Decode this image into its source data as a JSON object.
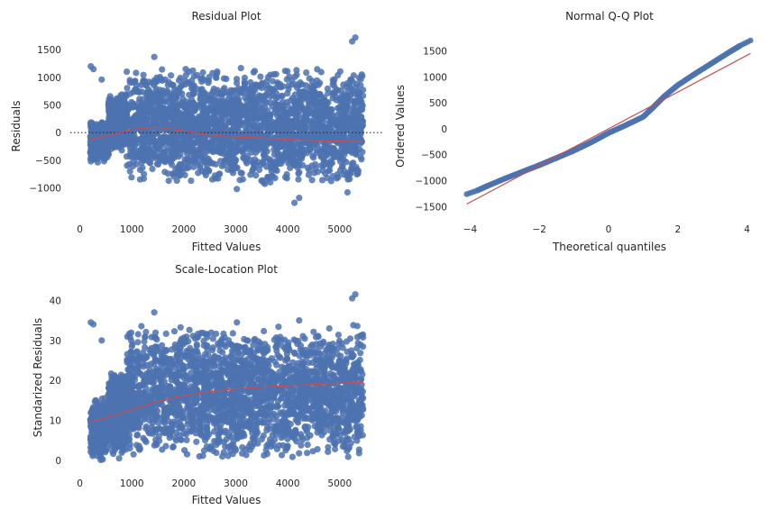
{
  "figure": {
    "background": "#ffffff"
  },
  "colors": {
    "points": "#4c72b0",
    "lowess": "#c44e52",
    "zero_line": "#262626"
  },
  "chart_data": [
    {
      "id": "residual",
      "type": "scatter",
      "title": "Residual Plot",
      "xlabel": "Fitted Values",
      "ylabel": "Residuals",
      "xlim": [
        -150,
        5750
      ],
      "ylim": [
        -1480,
        1780
      ],
      "xticks": [
        0,
        1000,
        2000,
        3000,
        4000,
        5000
      ],
      "yticks": [
        -1000,
        -500,
        0,
        500,
        1000,
        1500
      ],
      "grid": false,
      "reference_line": {
        "y": 0,
        "style": "dotted"
      },
      "point_cloud": {
        "x_range": [
          200,
          5450
        ],
        "bands": [
          {
            "x": [
              200,
              550
            ],
            "y": [
              -550,
              250
            ]
          },
          {
            "x": [
              550,
              900
            ],
            "y": [
              -350,
              750
            ]
          },
          {
            "x": [
              900,
              5450
            ],
            "y": [
              -950,
              1200
            ]
          }
        ],
        "extremes": [
          [
            210,
            1200
          ],
          [
            260,
            1150
          ],
          [
            420,
            960
          ],
          [
            1430,
            1370
          ],
          [
            4220,
            -1180
          ],
          [
            4130,
            -1270
          ],
          [
            5300,
            1720
          ],
          [
            5240,
            1650
          ],
          [
            3020,
            -1020
          ],
          [
            5150,
            -1080
          ]
        ]
      },
      "lowess": {
        "x": [
          200,
          600,
          1000,
          1500,
          2000,
          2500,
          3000,
          3500,
          4000,
          4500,
          5000,
          5450
        ],
        "y": [
          -130,
          -40,
          60,
          100,
          30,
          -40,
          -80,
          -100,
          -120,
          -140,
          -155,
          -165
        ]
      }
    },
    {
      "id": "qq",
      "type": "scatter",
      "title": "Normal Q-Q Plot",
      "xlabel": "Theoretical quantiles",
      "ylabel": "Ordered Values",
      "xlim": [
        -4.35,
        4.35
      ],
      "ylim": [
        -1650,
        1820
      ],
      "xticks": [
        -4,
        -2,
        0,
        2,
        4
      ],
      "yticks": [
        -1500,
        -1000,
        -500,
        0,
        500,
        1000,
        1500
      ],
      "grid": false,
      "quantile_points": {
        "x": [
          -4.1,
          -3.8,
          -3.5,
          -3.0,
          -2.5,
          -2.0,
          -1.5,
          -1.0,
          -0.5,
          0,
          0.5,
          1.0,
          1.3,
          1.6,
          2.0,
          2.5,
          3.0,
          3.5,
          3.8,
          4.1
        ],
        "y": [
          -1260,
          -1190,
          -1100,
          -960,
          -830,
          -700,
          -560,
          -420,
          -260,
          -80,
          70,
          230,
          420,
          620,
          840,
          1060,
          1270,
          1480,
          1600,
          1700
        ]
      },
      "reference_line": {
        "x": [
          -4.1,
          4.1
        ],
        "y": [
          -1450,
          1450
        ]
      }
    },
    {
      "id": "scale_location",
      "type": "scatter",
      "title": "Scale-Location Plot",
      "xlabel": "Fitted Values",
      "ylabel": "Standarized Residuals",
      "xlim": [
        -150,
        5750
      ],
      "ylim": [
        -2,
        43
      ],
      "xticks": [
        0,
        1000,
        2000,
        3000,
        4000,
        5000
      ],
      "yticks": [
        0,
        10,
        20,
        30,
        40
      ],
      "grid": false,
      "point_cloud": {
        "x_range": [
          200,
          5450
        ],
        "bands": [
          {
            "x": [
              200,
              550
            ],
            "y": [
              0,
              16
            ]
          },
          {
            "x": [
              550,
              900
            ],
            "y": [
              0,
              23
            ]
          },
          {
            "x": [
              900,
              5450
            ],
            "y": [
              0,
              34
            ]
          }
        ],
        "extremes": [
          [
            210,
            34.5
          ],
          [
            260,
            34
          ],
          [
            420,
            30
          ],
          [
            1430,
            37
          ],
          [
            5300,
            41.5
          ],
          [
            5240,
            40.5
          ],
          [
            3020,
            34.5
          ],
          [
            4220,
            35
          ]
        ]
      },
      "lowess": {
        "x": [
          200,
          600,
          1000,
          1500,
          2000,
          2500,
          3000,
          3500,
          4000,
          4500,
          5000,
          5450
        ],
        "y": [
          9.7,
          11,
          12.7,
          14.8,
          16.2,
          17.2,
          17.9,
          18.3,
          18.7,
          19,
          19.3,
          19.5
        ]
      }
    }
  ]
}
